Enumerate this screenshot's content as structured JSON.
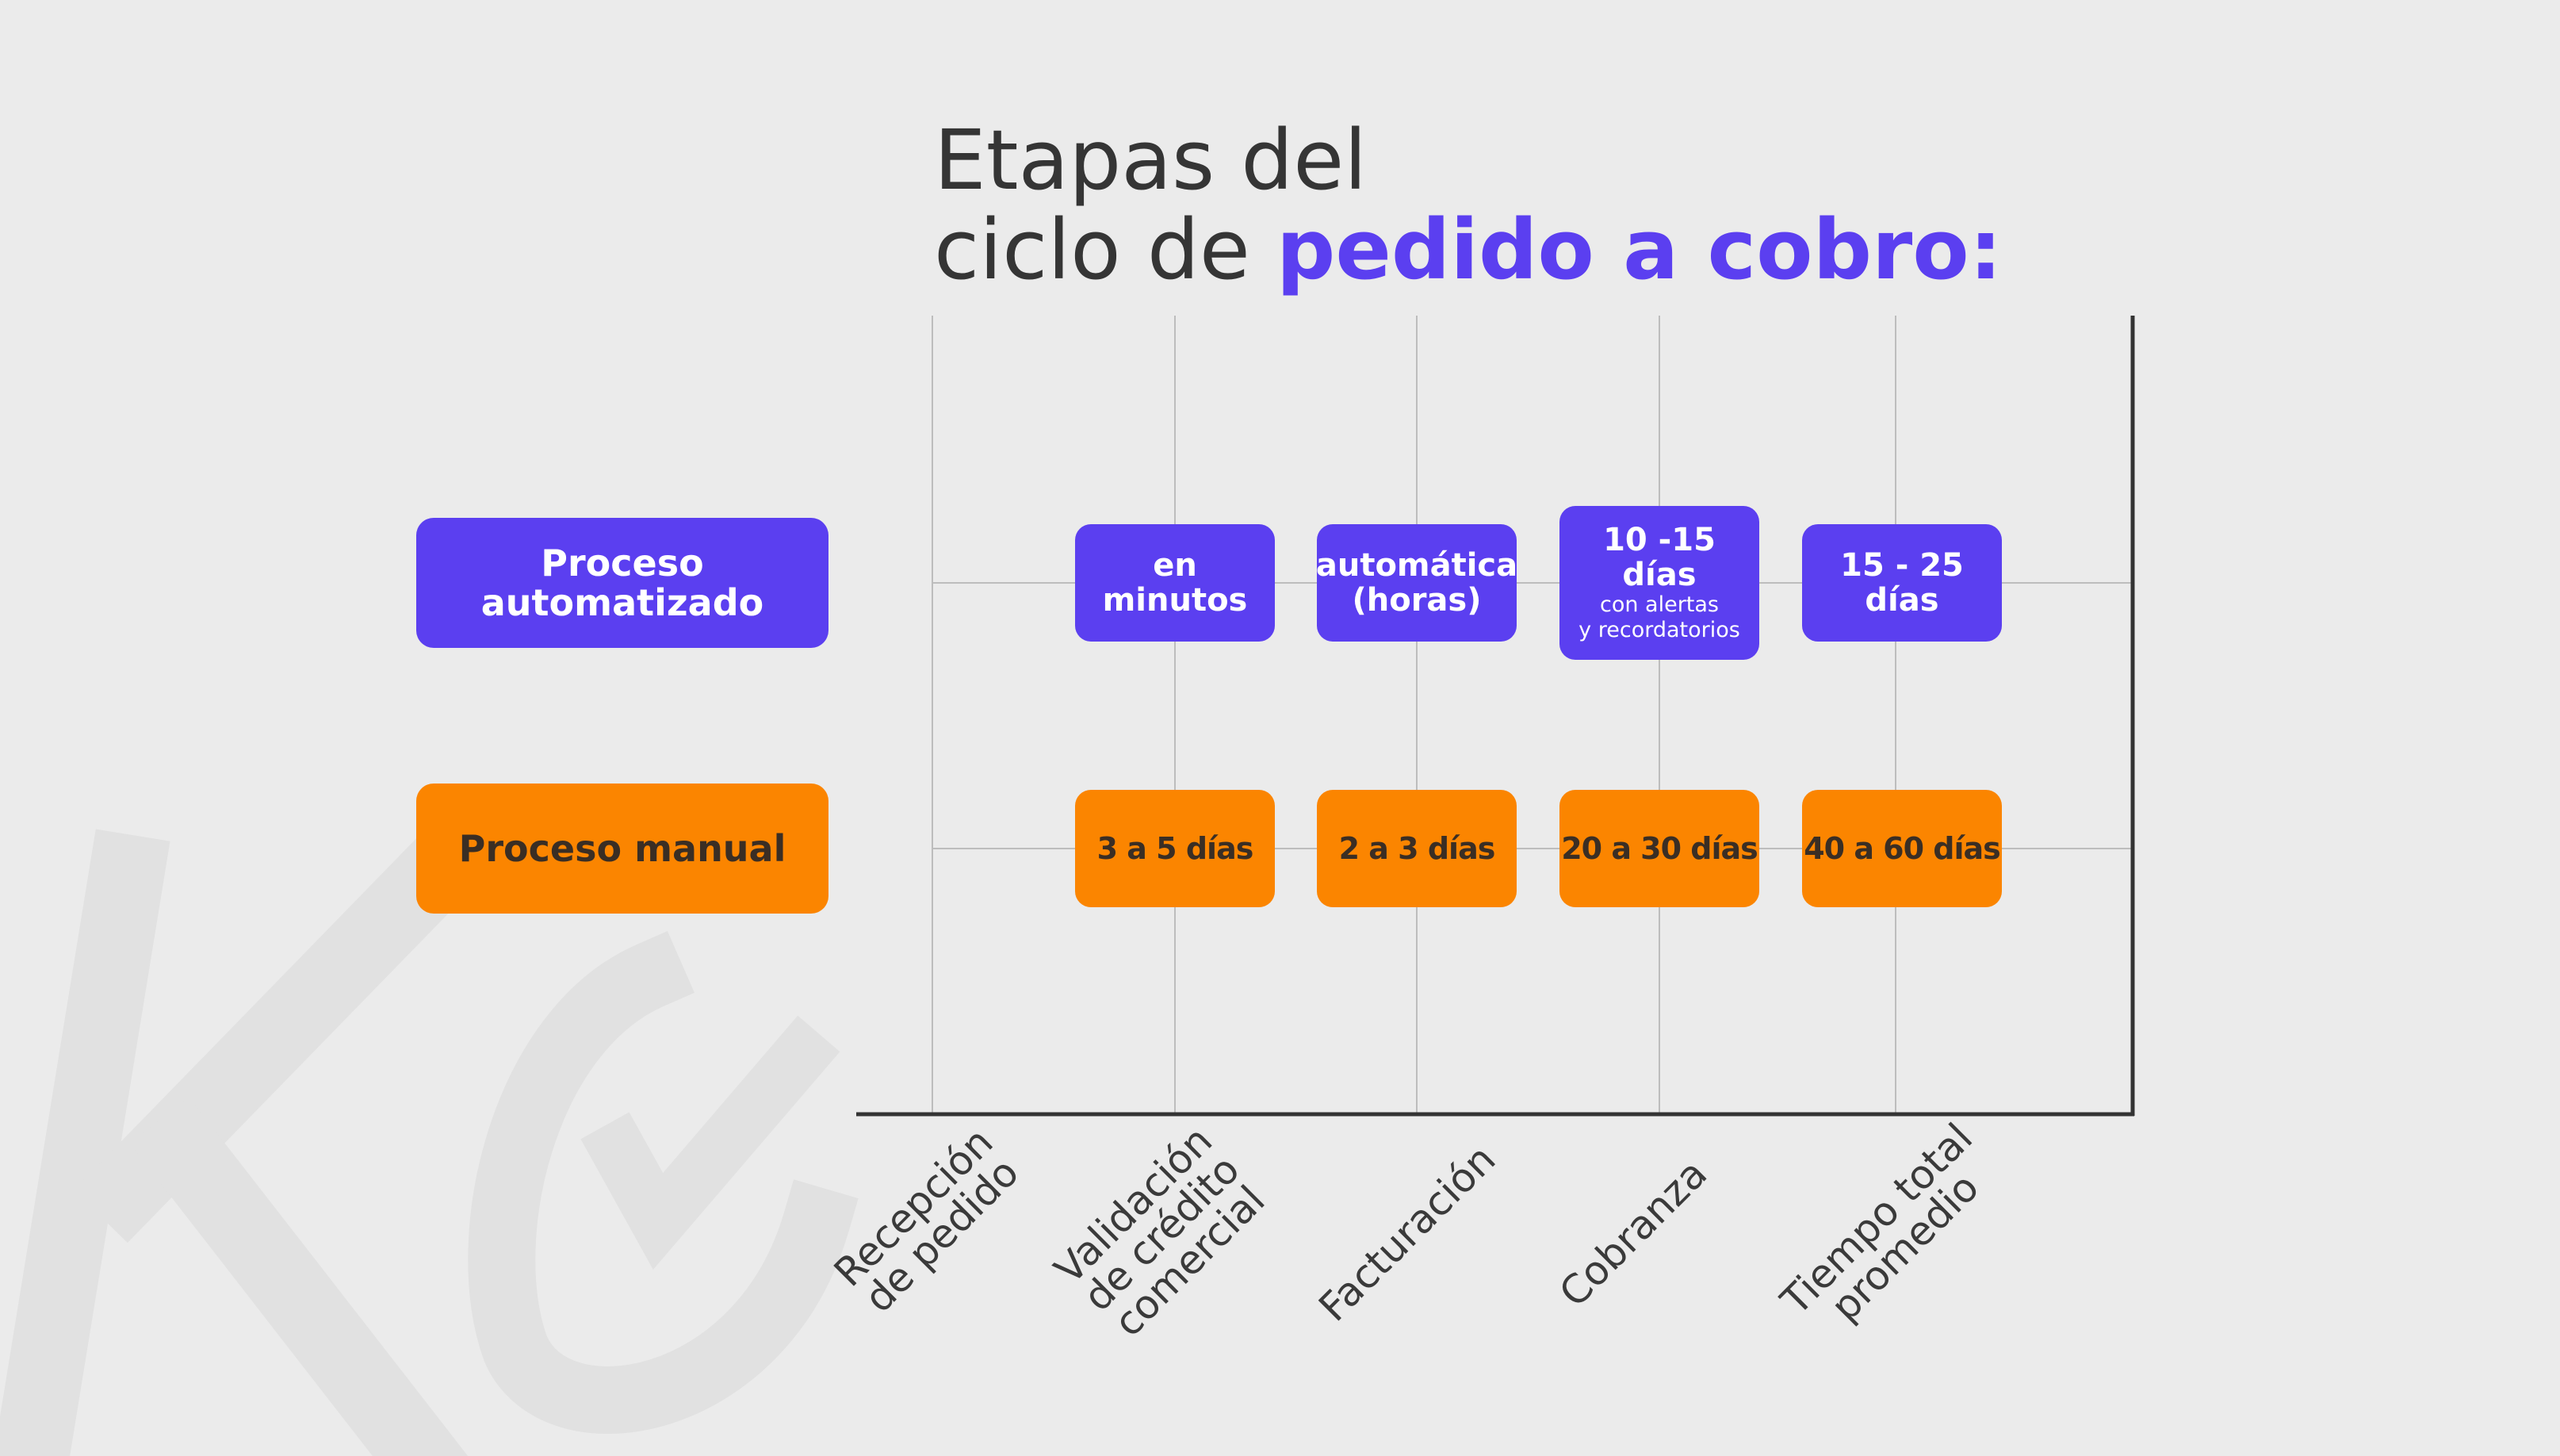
{
  "colors": {
    "background": "#ebebeb",
    "accent": "#5b3ff0",
    "automated": "#5b3ff0",
    "manual": "#fb8500",
    "text": "#353535",
    "watermark": "#e2e2e2"
  },
  "title": {
    "line1": "Etapas del",
    "line2_plain": "ciclo de ",
    "line2_accent": "pedido a cobro:"
  },
  "rows": {
    "automated": {
      "label_line1": "Proceso",
      "label_line2": "automatizado"
    },
    "manual": {
      "label": "Proceso manual"
    }
  },
  "cells": {
    "automated": [
      {
        "line1": "en minutos"
      },
      {
        "line1": "automática",
        "line2": "(horas)"
      },
      {
        "line1": "10 -15 días",
        "sub1": "con alertas",
        "sub2": "y recordatorios"
      },
      {
        "line1": "15 - 25 días"
      }
    ],
    "manual": [
      {
        "line1": "3 a 5 días"
      },
      {
        "line1": "2 a 3 días"
      },
      {
        "line1": "20 a 30 días"
      },
      {
        "line1": "40 a 60 días"
      }
    ]
  },
  "stages": [
    {
      "lines": [
        "Recepción",
        "de pedido"
      ]
    },
    {
      "lines": [
        "Validación",
        "de crédito",
        "comercial"
      ]
    },
    {
      "lines": [
        "Facturación"
      ]
    },
    {
      "lines": [
        "Cobranza"
      ]
    },
    {
      "lines": [
        "Tiempo total",
        "promedio"
      ]
    }
  ],
  "watermark": {
    "icon": "kc-logo-check-icon"
  }
}
